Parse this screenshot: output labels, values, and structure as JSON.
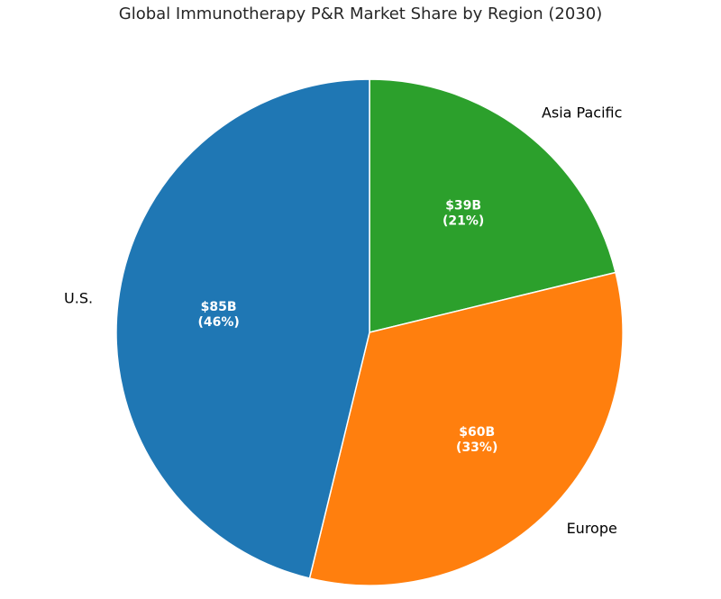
{
  "chart_data": {
    "type": "pie",
    "title": "Global Immunotherapy P&R Market Share by Region (2030)",
    "slices": [
      {
        "label": "Asia Pacific",
        "value": 39,
        "value_label": "$39B",
        "percent_label": "(21%)",
        "color": "#2ca02c"
      },
      {
        "label": "Europe",
        "value": 60,
        "value_label": "$60B",
        "percent_label": "(33%)",
        "color": "#ff7f0e"
      },
      {
        "label": "U.S.",
        "value": 85,
        "value_label": "$85B",
        "percent_label": "(46%)",
        "color": "#1f77b4"
      }
    ],
    "start_angle_deg": 90,
    "direction": "clockwise",
    "edge_color": "#ffffff"
  }
}
